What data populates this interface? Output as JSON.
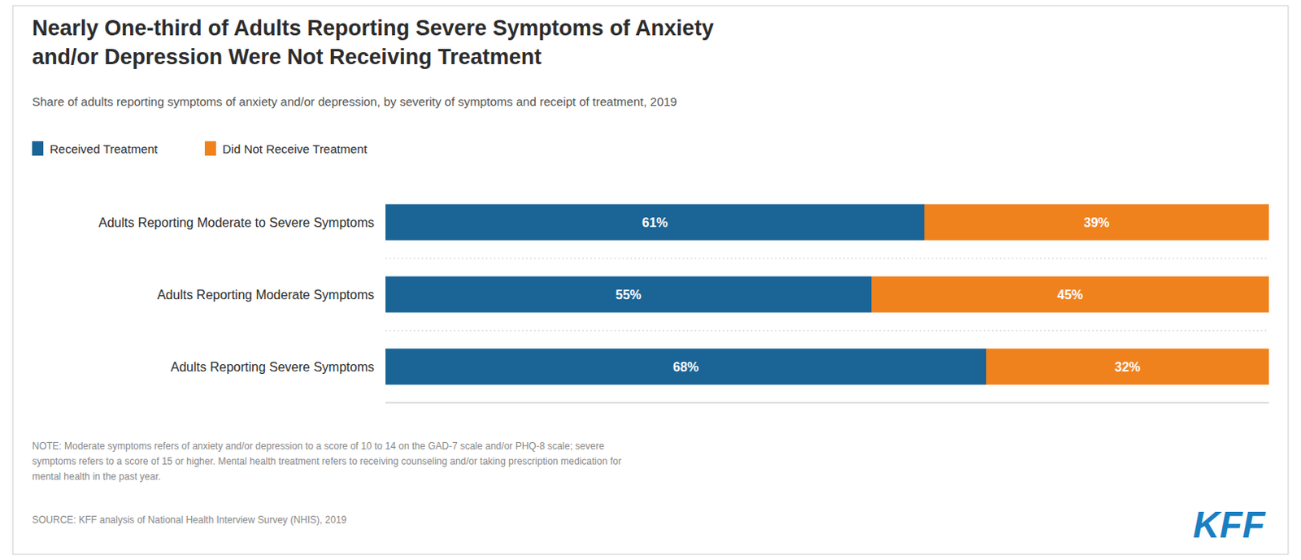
{
  "chart_data": {
    "type": "bar",
    "orientation": "horizontal",
    "stacked": true,
    "title": "Nearly One-third of Adults Reporting Severe Symptoms of Anxiety\nand/or Depression Were Not Receiving Treatment",
    "subtitle": "Share of adults reporting symptoms of anxiety and/or depression, by severity of symptoms and receipt of treatment, 2019",
    "categories": [
      "Adults Reporting Moderate to Severe Symptoms",
      "Adults Reporting Moderate Symptoms",
      "Adults Reporting Severe Symptoms"
    ],
    "series": [
      {
        "name": "Received Treatment",
        "color": "#1a6496",
        "values": [
          61,
          55,
          68
        ],
        "value_labels": [
          "61%",
          "55%",
          "68%"
        ]
      },
      {
        "name": "Did Not Receive Treatment",
        "color": "#f0821e",
        "values": [
          39,
          45,
          32
        ],
        "value_labels": [
          "39%",
          "45%",
          "32%"
        ]
      }
    ],
    "xlim": [
      0,
      100
    ],
    "data_labels": true,
    "tick_labels": false,
    "grid": false,
    "legend": "top",
    "annotations": [
      "NOTE: Moderate symptoms refers of anxiety and/or depression to a score of 10 to 14 on the GAD-7 scale and/or PHQ-8 scale; severe\nsymptoms refers to a score of 15 or higher. Mental health treatment refers to receiving counseling and/or taking prescription medication for\nmental health in the past year.",
      "SOURCE: KFF analysis of National Health Interview Survey (NHIS), 2019",
      "KFF"
    ]
  }
}
